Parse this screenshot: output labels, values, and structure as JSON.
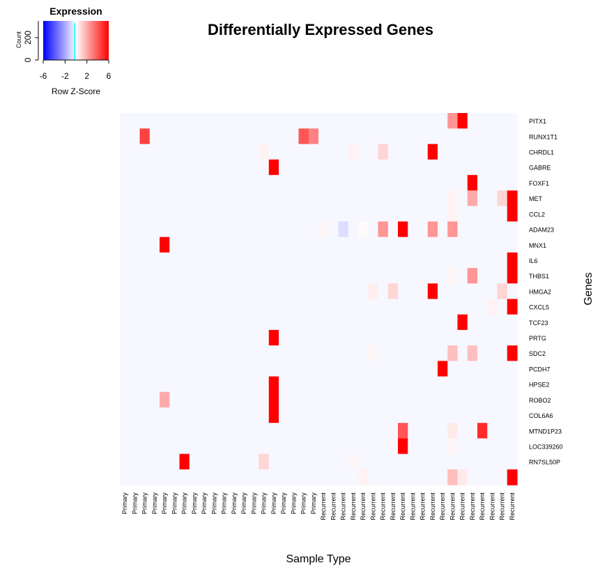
{
  "title": "Differentially Expressed Genes",
  "color_key": {
    "title": "Expression",
    "xlabel": "Row Z-Score",
    "ylabel": "Count",
    "x_ticks": [
      "-6",
      "-2",
      "2",
      "6"
    ],
    "y_ticks": [
      "0",
      "200"
    ],
    "low_color": "#0000ff",
    "mid_color": "#ffffff",
    "high_color": "#ff0000",
    "trace_color": "#00ffff"
  },
  "chart_data": {
    "type": "heatmap",
    "title": "Differentially Expressed Genes",
    "xlabel": "Sample Type",
    "ylabel": "Genes",
    "value_range": [
      -6,
      6
    ],
    "columns": [
      "Primary",
      "Primary",
      "Primary",
      "Primary",
      "Primary",
      "Primary",
      "Primary",
      "Primary",
      "Primary",
      "Primary",
      "Primary",
      "Primary",
      "Primary",
      "Primary",
      "Primary",
      "Primary",
      "Primary",
      "Primary",
      "Primary",
      "Primary",
      "Recurrent",
      "Recurrent",
      "Recurrent",
      "Recurrent",
      "Recurrent",
      "Recurrent",
      "Recurrent",
      "Recurrent",
      "Recurrent",
      "Recurrent",
      "Recurrent",
      "Recurrent",
      "Recurrent",
      "Recurrent",
      "Recurrent",
      "Recurrent",
      "Recurrent",
      "Recurrent",
      "Recurrent",
      "Recurrent"
    ],
    "rows": [
      "PITX1",
      "RUNX1T1",
      "CHRDL1",
      "GABRE",
      "FOXF1",
      "MET",
      "CCL2",
      "ADAM23",
      "MNX1",
      "IL6",
      "THBS1",
      "HMGA2",
      "CXCL5",
      "TCF23",
      "PRTG",
      "SDC2",
      "PCDH7",
      "HPSE2",
      "ROBO2",
      "COL6A6",
      "MTND1P23",
      "LOC339260",
      "RN7SL50P",
      ""
    ],
    "baseline": -0.2,
    "cells": [
      [
        0,
        33,
        2.5
      ],
      [
        0,
        34,
        6
      ],
      [
        1,
        2,
        4.5
      ],
      [
        1,
        18,
        4
      ],
      [
        1,
        19,
        3
      ],
      [
        2,
        14,
        0.3
      ],
      [
        2,
        23,
        0.3
      ],
      [
        2,
        26,
        1
      ],
      [
        2,
        31,
        6
      ],
      [
        3,
        15,
        6
      ],
      [
        4,
        35,
        6
      ],
      [
        5,
        33,
        0.3
      ],
      [
        5,
        35,
        2
      ],
      [
        5,
        38,
        1
      ],
      [
        5,
        39,
        6
      ],
      [
        6,
        33,
        0.3
      ],
      [
        6,
        39,
        6
      ],
      [
        7,
        20,
        0.2
      ],
      [
        7,
        22,
        -0.8
      ],
      [
        7,
        24,
        0.1
      ],
      [
        7,
        26,
        2.5
      ],
      [
        7,
        28,
        6
      ],
      [
        7,
        31,
        2.5
      ],
      [
        7,
        33,
        2.5
      ],
      [
        8,
        4,
        6
      ],
      [
        9,
        39,
        6
      ],
      [
        10,
        33,
        0.2
      ],
      [
        10,
        35,
        2.5
      ],
      [
        10,
        39,
        6
      ],
      [
        11,
        25,
        0.4
      ],
      [
        11,
        27,
        1
      ],
      [
        11,
        31,
        6
      ],
      [
        11,
        38,
        1
      ],
      [
        12,
        37,
        0.3
      ],
      [
        12,
        39,
        6
      ],
      [
        13,
        34,
        6
      ],
      [
        14,
        15,
        6
      ],
      [
        15,
        25,
        0.2
      ],
      [
        15,
        33,
        1.5
      ],
      [
        15,
        35,
        1.5
      ],
      [
        15,
        39,
        6
      ],
      [
        16,
        32,
        6
      ],
      [
        17,
        15,
        6
      ],
      [
        18,
        4,
        2
      ],
      [
        18,
        15,
        6
      ],
      [
        19,
        15,
        6
      ],
      [
        20,
        28,
        4
      ],
      [
        20,
        33,
        0.5
      ],
      [
        20,
        36,
        5
      ],
      [
        21,
        28,
        6
      ],
      [
        21,
        33,
        0.2
      ],
      [
        22,
        6,
        6
      ],
      [
        22,
        14,
        1
      ],
      [
        22,
        23,
        0.2
      ],
      [
        23,
        24,
        0.3
      ],
      [
        23,
        33,
        1.5
      ],
      [
        23,
        34,
        0.5
      ],
      [
        23,
        39,
        6
      ]
    ]
  }
}
